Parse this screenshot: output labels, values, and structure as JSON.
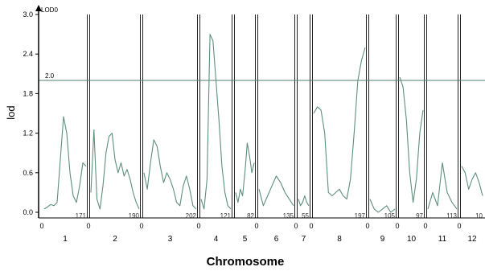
{
  "chart_data": {
    "type": "line",
    "xlabel": "Chromosome",
    "ylabel": "lod",
    "series_tag": "LOD0",
    "ylim": [
      0,
      3.0
    ],
    "yticks": [
      "0.0",
      "0.6",
      "1.2",
      "1.8",
      "2.4",
      "3.0"
    ],
    "threshold": {
      "value": 2.0,
      "label": "2.0"
    },
    "line_color": "#5e8f7b",
    "threshold_color": "#4f7f6d",
    "chromosomes": [
      {
        "name": "1",
        "start_label": "0",
        "marker_count": "171",
        "lod": [
          0.05,
          0.08,
          0.12,
          0.1,
          0.15,
          0.8,
          1.45,
          1.2,
          0.6,
          0.25,
          0.15,
          0.4,
          0.75,
          0.7
        ]
      },
      {
        "name": "2",
        "start_label": "0",
        "marker_count": "190",
        "lod": [
          0.3,
          1.25,
          0.2,
          0.05,
          0.4,
          0.9,
          1.15,
          1.2,
          0.8,
          0.6,
          0.75,
          0.55,
          0.65,
          0.5,
          0.3,
          0.15,
          0.05
        ]
      },
      {
        "name": "3",
        "start_label": "0",
        "marker_count": "202",
        "lod": [
          0.6,
          0.35,
          0.75,
          1.1,
          1.0,
          0.7,
          0.45,
          0.6,
          0.5,
          0.35,
          0.15,
          0.1,
          0.4,
          0.55,
          0.35,
          0.1,
          0.05
        ]
      },
      {
        "name": "4",
        "start_label": "0",
        "marker_count": "121",
        "lod": [
          0.2,
          0.05,
          0.5,
          2.7,
          2.6,
          2.0,
          1.4,
          0.7,
          0.3,
          0.1,
          0.05
        ]
      },
      {
        "name": "5",
        "start_label": "",
        "marker_count": "82",
        "lod": [
          0.3,
          0.15,
          0.35,
          0.25,
          0.6,
          1.05,
          0.85,
          0.6,
          0.75
        ]
      },
      {
        "name": "6",
        "start_label": "0",
        "marker_count": "135",
        "lod": [
          0.35,
          0.1,
          0.25,
          0.4,
          0.55,
          0.45,
          0.3,
          0.2,
          0.1
        ]
      },
      {
        "name": "7",
        "start_label": "0",
        "marker_count": "55",
        "lod": [
          0.2,
          0.1,
          0.15,
          0.25,
          0.15,
          0.1
        ]
      },
      {
        "name": "8",
        "start_label": "0",
        "marker_count": "197",
        "lod": [
          1.5,
          1.6,
          1.55,
          1.2,
          0.3,
          0.25,
          0.3,
          0.35,
          0.25,
          0.2,
          0.5,
          1.2,
          2.0,
          2.3,
          2.5
        ]
      },
      {
        "name": "9",
        "start_label": "0",
        "marker_count": "105",
        "lod": [
          0.2,
          0.05,
          0.0,
          0.05,
          0.1,
          0.0,
          0.05
        ]
      },
      {
        "name": "10",
        "start_label": "0",
        "marker_count": "97",
        "lod": [
          2.05,
          1.9,
          1.4,
          0.6,
          0.15,
          0.5,
          1.2,
          1.55
        ]
      },
      {
        "name": "11",
        "start_label": "0",
        "marker_count": "113",
        "lod": [
          0.05,
          0.3,
          0.1,
          0.75,
          0.3,
          0.15,
          0.05
        ]
      },
      {
        "name": "12",
        "start_label": "0",
        "marker_count": "10",
        "lod": [
          0.7,
          0.6,
          0.35,
          0.5,
          0.6,
          0.45,
          0.25
        ]
      }
    ]
  }
}
